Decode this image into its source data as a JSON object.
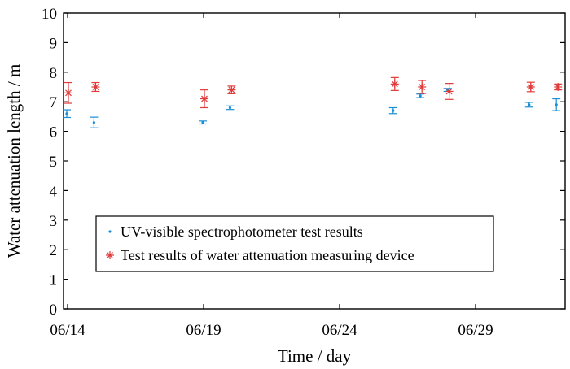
{
  "chart_data": {
    "type": "scatter",
    "title": "",
    "xlabel": "Time / day",
    "ylabel": "Water attenuation length / m",
    "x_axis": {
      "type": "date",
      "range": [
        "2024-06-14",
        "2024-07-02"
      ],
      "ticks": [
        {
          "date": "2024-06-14",
          "label": "06/14"
        },
        {
          "date": "2024-06-19",
          "label": "06/19"
        },
        {
          "date": "2024-06-24",
          "label": "06/24"
        },
        {
          "date": "2024-06-29",
          "label": "06/29"
        }
      ]
    },
    "y_axis": {
      "range": [
        0,
        10
      ],
      "ticks": [
        0,
        1,
        2,
        3,
        4,
        5,
        6,
        7,
        8,
        9,
        10
      ],
      "tick_labels": [
        "0",
        "1",
        "2",
        "3",
        "4",
        "5",
        "6",
        "7",
        "8",
        "9",
        "10"
      ]
    },
    "grid": false,
    "legend_position": "lower-left",
    "series": [
      {
        "name": "UV-visible spectrophotometer test results",
        "marker": "dot",
        "color": "#1a8fd6",
        "points": [
          {
            "x": "2024-06-14",
            "y": 6.6,
            "err": 0.13
          },
          {
            "x": "2024-06-15",
            "y": 6.3,
            "err": 0.18
          },
          {
            "x": "2024-06-19",
            "y": 6.3,
            "err": 0.05
          },
          {
            "x": "2024-06-20",
            "y": 6.8,
            "err": 0.06
          },
          {
            "x": "2024-06-26",
            "y": 6.7,
            "err": 0.1
          },
          {
            "x": "2024-06-27",
            "y": 7.2,
            "err": 0.06
          },
          {
            "x": "2024-06-28",
            "y": 7.4,
            "err": 0.05
          },
          {
            "x": "2024-07-01",
            "y": 6.9,
            "err": 0.08
          },
          {
            "x": "2024-07-02",
            "y": 6.9,
            "err": 0.2
          }
        ]
      },
      {
        "name": "Test results of water attenuation measuring device",
        "marker": "asterisk",
        "color": "#e03a3a",
        "points": [
          {
            "x": "2024-06-14",
            "y": 7.3,
            "err": 0.35
          },
          {
            "x": "2024-06-15",
            "y": 7.5,
            "err": 0.15
          },
          {
            "x": "2024-06-19",
            "y": 7.1,
            "err": 0.3
          },
          {
            "x": "2024-06-20",
            "y": 7.4,
            "err": 0.13
          },
          {
            "x": "2024-06-26",
            "y": 7.6,
            "err": 0.22
          },
          {
            "x": "2024-06-27",
            "y": 7.5,
            "err": 0.22
          },
          {
            "x": "2024-06-28",
            "y": 7.35,
            "err": 0.27
          },
          {
            "x": "2024-07-01",
            "y": 7.5,
            "err": 0.16
          },
          {
            "x": "2024-07-02",
            "y": 7.5,
            "err": 0.1
          }
        ]
      }
    ]
  }
}
